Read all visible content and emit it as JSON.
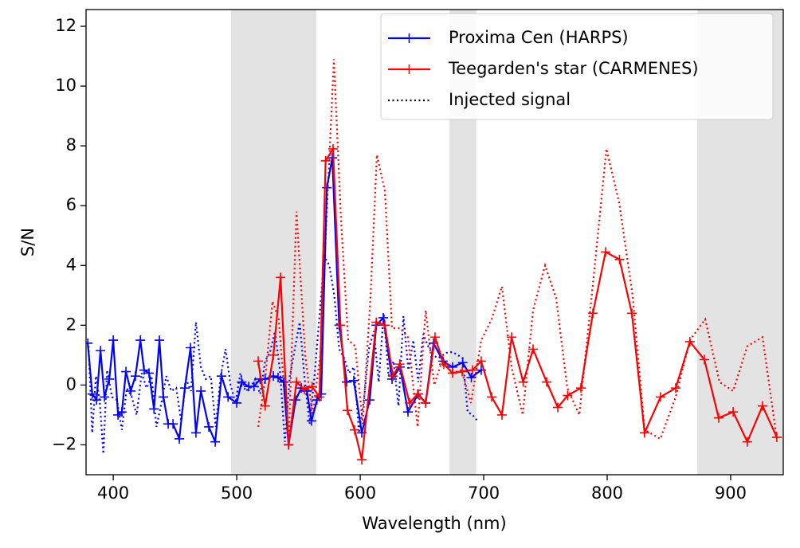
{
  "chart_data": {
    "type": "line",
    "xlabel": "Wavelength (nm)",
    "ylabel": "S/N",
    "xlim": [
      378,
      942.6
    ],
    "ylim": [
      -3.0,
      12.56
    ],
    "xticks": [
      400,
      500,
      600,
      700,
      800,
      900
    ],
    "yticks": [
      {
        "value": -2,
        "label": "−2"
      },
      0,
      2,
      4,
      6,
      8,
      10,
      12
    ],
    "shaded_regions": [
      [
        495.5,
        564.5
      ],
      [
        672.3,
        694
      ],
      [
        872.9,
        960
      ]
    ],
    "shade_color": "#e3e3e3",
    "legend_position": "upper right",
    "series": [
      {
        "name": "Proxima Cen (HARPS)",
        "color": "#0000ff",
        "marker": "+",
        "style": "solid",
        "x": [
          379.4,
          383,
          386.5,
          389.7,
          392.9,
          396.8,
          400,
          403.9,
          407,
          410.3,
          414.2,
          418,
          422,
          425,
          429,
          433,
          437.4,
          440.6,
          444.5,
          448.4,
          453.5,
          458,
          462.6,
          467,
          471,
          477.4,
          482.6,
          487.7,
          493,
          500,
          504,
          509.7,
          514,
          519,
          523,
          529.7,
          533.5,
          538,
          542,
          547.7,
          552.3,
          556.8,
          560.6,
          565,
          568.4,
          573,
          577.4,
          583,
          589,
          594.8,
          601.3,
          607.7,
          613,
          618.7,
          625.8,
          632.3,
          638.7,
          647,
          653,
          659.4,
          667,
          674.8,
          683,
          690,
          698
        ],
        "values": [
          1.4,
          -0.3,
          -0.5,
          1.15,
          -0.4,
          0.2,
          1.5,
          -1.0,
          -0.9,
          0.45,
          -0.2,
          0.3,
          1.5,
          0.5,
          0.4,
          -0.8,
          1.5,
          -0.4,
          -1.3,
          -1.3,
          -1.8,
          -0.1,
          1.25,
          -1.6,
          -0.2,
          -1.4,
          -1.9,
          0.3,
          -0.4,
          -0.6,
          0.1,
          -0.05,
          -0.05,
          0.2,
          0.2,
          0.3,
          0.25,
          0.1,
          -2.0,
          -0.5,
          -0.1,
          -0.2,
          -1.2,
          -0.5,
          -0.3,
          6.6,
          7.6,
          2.0,
          0.1,
          0.15,
          -1.6,
          -0.5,
          2.0,
          2.25,
          0.2,
          0.6,
          -0.9,
          -0.3,
          -0.6,
          1.4,
          0.8,
          0.6,
          0.75,
          0.25,
          0.5
        ]
      },
      {
        "name": "Teegarden's star (CARMENES)",
        "color": "#ff0000",
        "marker": "+",
        "style": "solid",
        "x": [
          517.4,
          523,
          529.7,
          535.5,
          542,
          548.4,
          554.8,
          561,
          567,
          572,
          578,
          584,
          589.7,
          595.5,
          601.3,
          613,
          620,
          626.5,
          632,
          640,
          646.5,
          653,
          660.6,
          667.7,
          674.8,
          682.6,
          691,
          698,
          706.5,
          714.8,
          722.6,
          732,
          740,
          751,
          760,
          768,
          778.7,
          788.4,
          798.7,
          810,
          820,
          830.3,
          843.2,
          855.5,
          867,
          878.7,
          890.3,
          902,
          913.5,
          925.8,
          937.4
        ],
        "values": [
          0.8,
          -0.7,
          1.0,
          3.6,
          -2.0,
          0.1,
          -0.15,
          -0.05,
          -0.4,
          7.5,
          7.9,
          2.0,
          -0.85,
          -1.5,
          -2.5,
          2.1,
          2.0,
          0.3,
          0.7,
          -0.6,
          -0.3,
          -0.6,
          1.6,
          0.7,
          0.4,
          0.45,
          0.5,
          0.8,
          -0.4,
          -1.0,
          1.6,
          0.1,
          1.2,
          0.1,
          -0.75,
          -0.35,
          -0.1,
          2.4,
          4.45,
          4.2,
          2.4,
          -1.6,
          -0.4,
          -0.1,
          1.45,
          0.85,
          -1.1,
          -0.9,
          -1.9,
          -0.7,
          -1.75
        ]
      }
    ],
    "injected": {
      "name": "Injected signal",
      "legend_color": "#000000",
      "style": "dotted",
      "series": [
        {
          "color": "#0000ff",
          "x": [
            380,
            383,
            386,
            389,
            392,
            395,
            399,
            403,
            407,
            411,
            415,
            419,
            423,
            427,
            431,
            435,
            439,
            443,
            447,
            451,
            455,
            459,
            463,
            467,
            471,
            475,
            479,
            483,
            487,
            491,
            495,
            499,
            503,
            507,
            511,
            515,
            519,
            523,
            527,
            531,
            535,
            539,
            543,
            547,
            551,
            555,
            559,
            563,
            567,
            571,
            575,
            579,
            583,
            587,
            591,
            595,
            599,
            603,
            607,
            611,
            615,
            619,
            623,
            627,
            631,
            635,
            639,
            643,
            647,
            651,
            655,
            659,
            663,
            667,
            671,
            675,
            679,
            683,
            687,
            691,
            695
          ],
          "values": [
            1.3,
            -1.6,
            0.3,
            -0.5,
            -2.3,
            0.5,
            -0.4,
            -0.5,
            -1.5,
            -0.1,
            -0.4,
            -1.0,
            0.4,
            -0.1,
            0.3,
            -1.4,
            -0.6,
            0.3,
            -0.2,
            -0.1,
            -1.2,
            0.2,
            -0.2,
            2.1,
            0.6,
            0.2,
            0.3,
            -1.4,
            0.3,
            1.2,
            0.0,
            -0.6,
            0.4,
            -0.2,
            -0.1,
            0.2,
            -0.3,
            0.8,
            1.1,
            1.8,
            0.5,
            -1.9,
            0.3,
            1.2,
            2.1,
            0.2,
            -1.3,
            0.3,
            2.3,
            4.3,
            4.0,
            3.0,
            1.2,
            0.9,
            0.4,
            0.6,
            -1.6,
            -0.5,
            1.2,
            1.8,
            0.1,
            2.4,
            0.3,
            0.8,
            -0.7,
            2.3,
            0.5,
            1.5,
            0.1,
            1.7,
            1.3,
            1.0,
            0.9,
            1.0,
            1.1,
            1.1,
            1.0,
            0.9,
            -0.9,
            -1.0,
            -1.2
          ]
        },
        {
          "color": "#ff0000",
          "x": [
            517.4,
            523,
            529,
            534,
            542,
            548.4,
            555.5,
            561.3,
            567.7,
            573,
            578.7,
            584.5,
            590.3,
            596,
            602,
            608.4,
            613.5,
            620,
            625.8,
            632.3,
            638.7,
            646.5,
            653,
            660,
            667,
            674,
            682,
            689.7,
            698,
            706.5,
            714.8,
            722.6,
            731.6,
            740,
            749.7,
            758.7,
            767.7,
            777.4,
            789,
            799.4,
            809.7,
            820.6,
            830.3,
            843,
            855.5,
            867,
            879.4,
            891,
            902,
            913.5,
            925.8,
            937.4
          ],
          "values": [
            -1.4,
            0.2,
            2.8,
            2.2,
            -2.0,
            5.8,
            1.0,
            -1.0,
            1.0,
            5.8,
            10.9,
            5.5,
            1.5,
            1.3,
            -1.3,
            3.0,
            7.7,
            6.5,
            1.9,
            1.9,
            1.6,
            -1.4,
            2.5,
            0.0,
            0.9,
            0.4,
            0.5,
            -0.6,
            1.5,
            2.2,
            3.3,
            0.6,
            -1.0,
            2.5,
            4.0,
            2.9,
            -0.1,
            -1.0,
            3.6,
            7.9,
            6.1,
            3.0,
            -1.5,
            -1.8,
            -0.4,
            1.5,
            2.2,
            0.1,
            -0.2,
            1.3,
            1.6,
            -1.8
          ]
        }
      ]
    }
  }
}
